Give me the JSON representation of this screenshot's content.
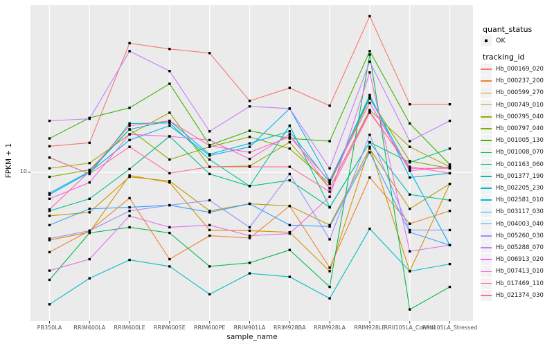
{
  "style": {
    "page_bg": "#FFFFFF",
    "panel_bg": "#EBEBEB",
    "grid_color": "#FFFFFF",
    "tick_color": "#333333",
    "axis_text_color": "#4D4D4D",
    "axis_title_color": "#111111",
    "point_color": "#000000",
    "legend_key_bg": "#F2F2F2"
  },
  "chart_data": {
    "type": "line",
    "title": "",
    "xlabel": "sample_name",
    "ylabel": "FPKM + 1",
    "y_scale": "log10",
    "y_ticks": [
      "10"
    ],
    "y_domain_log10": [
      0.2,
      1.9
    ],
    "grid": "major-only",
    "point_marker": "small black square",
    "legend_position": "right",
    "legend": {
      "quant_status_title": "quant_status",
      "quant_status_items": [
        "OK"
      ],
      "tracking_id_title": "tracking_id"
    },
    "categories": [
      "PB350LA",
      "RRIM600LA",
      "RRIM600LE",
      "RRIM600SE",
      "RRIM600PE",
      "RRIM901LA",
      "RRIM928BA",
      "RRIM928LA",
      "RRIM928LE",
      "RRII105LA_Control",
      "RRII105LA_Stressed"
    ],
    "series": [
      {
        "name": "Hb_000169_020",
        "color": "#F8766D",
        "values": [
          13.8,
          14.4,
          49.4,
          46.0,
          43.7,
          24.2,
          28.4,
          22.8,
          69.0,
          23.2,
          23.2
        ]
      },
      {
        "name": "Hb_000237_200",
        "color": "#EA8331",
        "values": [
          3.72,
          4.85,
          7.26,
          3.41,
          4.56,
          4.43,
          6.59,
          3.07,
          9.37,
          5.29,
          6.2
        ]
      },
      {
        "name": "Hb_000599_270",
        "color": "#D89000",
        "values": [
          4.32,
          4.76,
          9.62,
          8.81,
          4.89,
          4.85,
          4.76,
          2.94,
          13.7,
          2.94,
          8.66
        ]
      },
      {
        "name": "Hb_000749_010",
        "color": "#C09B00",
        "values": [
          5.83,
          6.09,
          9.45,
          8.97,
          6.2,
          6.77,
          6.59,
          5.2,
          13.4,
          6.36,
          8.66
        ]
      },
      {
        "name": "Hb_000795_040",
        "color": "#A3A500",
        "values": [
          10.5,
          11.2,
          16.0,
          20.9,
          10.7,
          10.8,
          14.5,
          8.21,
          21.6,
          13.7,
          10.7
        ]
      },
      {
        "name": "Hb_000797_040",
        "color": "#7CAE00",
        "values": [
          9.45,
          10.3,
          17.0,
          11.7,
          13.7,
          15.5,
          13.4,
          8.66,
          24.9,
          11.5,
          10.5
        ]
      },
      {
        "name": "Hb_001005_130",
        "color": "#39B600",
        "values": [
          15.2,
          19.6,
          22.2,
          29.9,
          14.0,
          16.7,
          15.2,
          14.7,
          44.8,
          18.3,
          11.0
        ]
      },
      {
        "name": "Hb_001008_070",
        "color": "#00BB4E",
        "values": [
          2.64,
          4.72,
          5.06,
          4.72,
          3.12,
          3.26,
          3.82,
          2.42,
          42.9,
          1.83,
          2.42
        ]
      },
      {
        "name": "Hb_001163_060",
        "color": "#00BF7D",
        "values": [
          6.2,
          7.2,
          10.4,
          15.6,
          9.79,
          8.43,
          9.05,
          6.48,
          14.5,
          11.3,
          13.4
        ]
      },
      {
        "name": "Hb_001377_190",
        "color": "#00C1A3",
        "values": [
          12.0,
          9.79,
          18.3,
          18.4,
          11.7,
          8.43,
          17.8,
          6.48,
          14.5,
          7.59,
          7.07
        ]
      },
      {
        "name": "Hb_002205_230",
        "color": "#00BFC4",
        "values": [
          1.95,
          2.69,
          3.38,
          3.12,
          2.21,
          2.86,
          2.74,
          2.1,
          4.97,
          2.94,
          3.21
        ]
      },
      {
        "name": "Hb_002581_010",
        "color": "#00BAE0",
        "values": [
          7.72,
          10.1,
          17.0,
          18.9,
          12.5,
          14.3,
          16.6,
          8.81,
          26.0,
          9.37,
          9.88
        ]
      },
      {
        "name": "Hb_003117_030",
        "color": "#00B0F6",
        "values": [
          7.59,
          10.0,
          14.9,
          17.8,
          12.3,
          13.7,
          22.0,
          9.05,
          25.3,
          10.2,
          4.06
        ]
      },
      {
        "name": "Hb_004003_040",
        "color": "#35A2FF",
        "values": [
          5.2,
          6.36,
          6.48,
          6.65,
          6.09,
          6.77,
          5.2,
          5.11,
          12.8,
          4.76,
          4.06
        ]
      },
      {
        "name": "Hb_005260_030",
        "color": "#9590FF",
        "values": [
          4.4,
          4.85,
          6.2,
          6.65,
          7.07,
          5.06,
          9.79,
          4.36,
          15.9,
          4.89,
          4.89
        ]
      },
      {
        "name": "Hb_005288_070",
        "color": "#C77CFF",
        "values": [
          18.9,
          19.4,
          44.8,
          35.0,
          16.6,
          22.6,
          22.0,
          10.5,
          39.3,
          14.7,
          18.9
        ]
      },
      {
        "name": "Hb_006913_020",
        "color": "#E76BF3",
        "values": [
          2.96,
          3.41,
          5.83,
          5.06,
          5.2,
          4.56,
          4.68,
          7.39,
          34.4,
          3.76,
          4.06
        ]
      },
      {
        "name": "Hb_007413_010",
        "color": "#FA62DB",
        "values": [
          7.2,
          8.81,
          16.0,
          15.6,
          14.9,
          11.8,
          16.0,
          8.21,
          21.2,
          10.5,
          10.5
        ]
      },
      {
        "name": "Hb_017469_110",
        "color": "#FF62BC",
        "values": [
          6.31,
          10.1,
          17.8,
          18.9,
          13.9,
          12.8,
          15.5,
          8.97,
          23.6,
          10.2,
          10.7
        ]
      },
      {
        "name": "Hb_021374_030",
        "color": "#FF6A98",
        "values": [
          12.0,
          9.79,
          13.7,
          9.88,
          10.7,
          10.7,
          10.7,
          7.86,
          20.9,
          10.7,
          9.88
        ]
      }
    ]
  }
}
